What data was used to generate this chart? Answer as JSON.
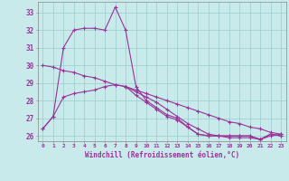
{
  "xlabel": "Windchill (Refroidissement éolien,°C)",
  "bg_color": "#c8eaea",
  "line_color": "#993399",
  "grid_color": "#99cccc",
  "xlim": [
    -0.5,
    23.5
  ],
  "ylim": [
    25.7,
    33.6
  ],
  "yticks": [
    26,
    27,
    28,
    29,
    30,
    31,
    32,
    33
  ],
  "xticks": [
    0,
    1,
    2,
    3,
    4,
    5,
    6,
    7,
    8,
    9,
    10,
    11,
    12,
    13,
    14,
    15,
    16,
    17,
    18,
    19,
    20,
    21,
    22,
    23
  ],
  "series": [
    [
      26.4,
      27.1,
      31.0,
      32.0,
      32.1,
      32.1,
      32.0,
      33.3,
      32.0,
      28.8,
      28.0,
      27.6,
      27.2,
      27.0,
      26.5,
      26.1,
      26.0,
      26.0,
      26.0,
      26.0,
      26.0,
      25.8,
      26.1,
      26.0
    ],
    [
      26.4,
      27.1,
      28.2,
      28.4,
      28.5,
      28.6,
      28.8,
      28.9,
      28.8,
      28.3,
      27.9,
      27.5,
      27.1,
      26.9,
      26.5,
      26.1,
      26.0,
      26.0,
      26.0,
      26.0,
      26.0,
      25.8,
      26.1,
      26.0
    ],
    [
      30.0,
      29.9,
      29.7,
      29.6,
      29.4,
      29.3,
      29.1,
      28.9,
      28.8,
      28.6,
      28.4,
      28.2,
      28.0,
      27.8,
      27.6,
      27.4,
      27.2,
      27.0,
      26.8,
      26.7,
      26.5,
      26.4,
      26.2,
      26.1
    ],
    [
      null,
      null,
      null,
      null,
      null,
      null,
      null,
      null,
      28.8,
      28.5,
      28.2,
      27.9,
      27.5,
      27.1,
      26.7,
      26.4,
      26.1,
      26.0,
      25.9,
      25.9,
      25.9,
      25.8,
      26.0,
      26.1
    ]
  ]
}
